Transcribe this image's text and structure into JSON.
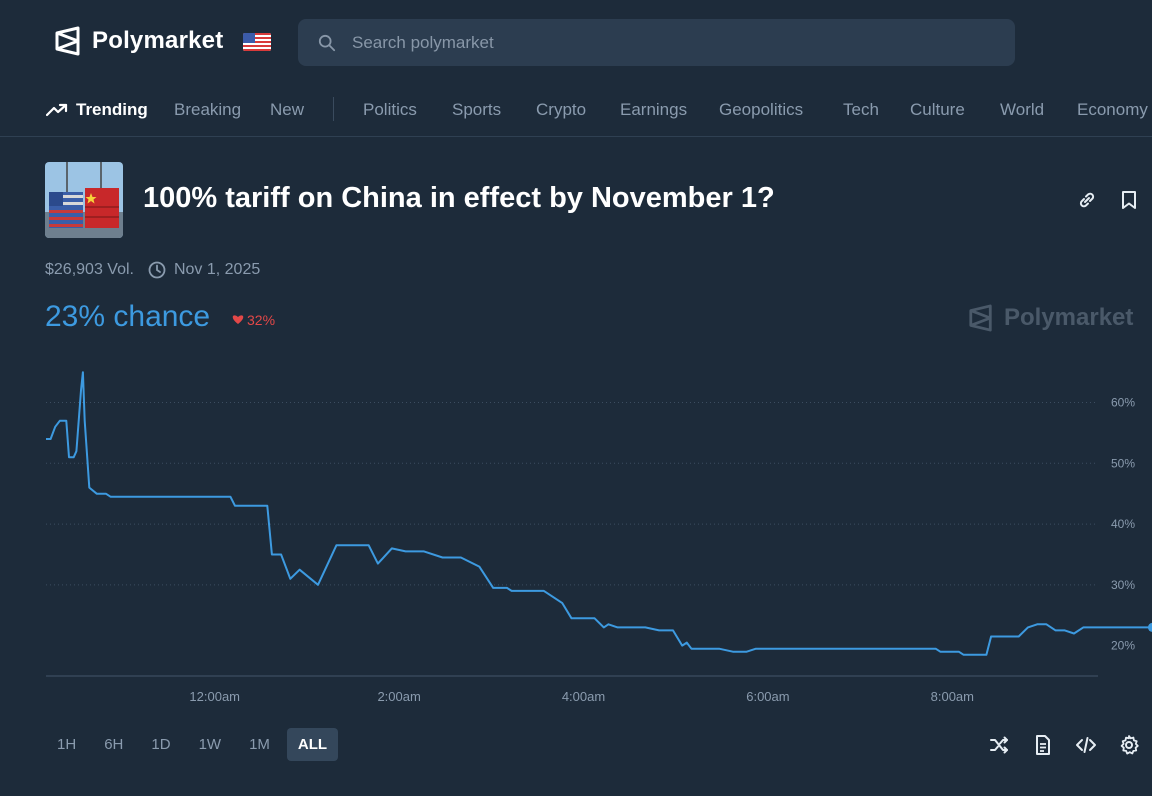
{
  "header": {
    "brand": "Polymarket",
    "search_placeholder": "Search polymarket"
  },
  "nav": {
    "items": [
      {
        "label": "Trending",
        "active": true
      },
      {
        "label": "Breaking"
      },
      {
        "label": "New"
      },
      {
        "label": "Politics"
      },
      {
        "label": "Sports"
      },
      {
        "label": "Crypto"
      },
      {
        "label": "Earnings"
      },
      {
        "label": "Geopolitics"
      },
      {
        "label": "Tech"
      },
      {
        "label": "Culture"
      },
      {
        "label": "World"
      },
      {
        "label": "Economy"
      }
    ]
  },
  "market": {
    "title": "100% tariff on China in effect by November 1?",
    "volume": "$26,903 Vol.",
    "end_date": "Nov 1, 2025",
    "chance": "23% chance",
    "change": "32%",
    "watermark": "Polymarket"
  },
  "chart_data": {
    "type": "line",
    "series": [
      {
        "color": "#3d9ae0",
        "points": [
          [
            0,
            54
          ],
          [
            0.05,
            54
          ],
          [
            0.1,
            56
          ],
          [
            0.15,
            57
          ],
          [
            0.22,
            57
          ],
          [
            0.25,
            51
          ],
          [
            0.3,
            51
          ],
          [
            0.33,
            52
          ],
          [
            0.38,
            62
          ],
          [
            0.4,
            65
          ],
          [
            0.42,
            57
          ],
          [
            0.47,
            46
          ],
          [
            0.55,
            45
          ],
          [
            0.65,
            45
          ],
          [
            0.7,
            44.5
          ],
          [
            1.0,
            44.5
          ],
          [
            1.5,
            44.5
          ],
          [
            2.0,
            44.5
          ],
          [
            2.05,
            43
          ],
          [
            2.4,
            43
          ],
          [
            2.45,
            35
          ],
          [
            2.55,
            35
          ],
          [
            2.65,
            31
          ],
          [
            2.75,
            32.5
          ],
          [
            2.95,
            30
          ],
          [
            3.15,
            36.5
          ],
          [
            3.5,
            36.5
          ],
          [
            3.6,
            33.5
          ],
          [
            3.75,
            36
          ],
          [
            3.9,
            35.5
          ],
          [
            4.1,
            35.5
          ],
          [
            4.3,
            34.5
          ],
          [
            4.5,
            34.5
          ],
          [
            4.7,
            33
          ],
          [
            4.85,
            29.5
          ],
          [
            5.0,
            29.5
          ],
          [
            5.05,
            29
          ],
          [
            5.4,
            29
          ],
          [
            5.6,
            27
          ],
          [
            5.7,
            24.5
          ],
          [
            5.95,
            24.5
          ],
          [
            6.05,
            23
          ],
          [
            6.1,
            23.5
          ],
          [
            6.2,
            23
          ],
          [
            6.5,
            23
          ],
          [
            6.65,
            22.5
          ],
          [
            6.8,
            22.5
          ],
          [
            6.9,
            20
          ],
          [
            6.95,
            20.5
          ],
          [
            7.0,
            19.5
          ],
          [
            7.3,
            19.5
          ],
          [
            7.45,
            19
          ],
          [
            7.6,
            19
          ],
          [
            7.7,
            19.5
          ],
          [
            8.0,
            19.5
          ],
          [
            8.5,
            19.5
          ],
          [
            9.0,
            19.5
          ],
          [
            9.65,
            19.5
          ],
          [
            9.7,
            19
          ],
          [
            9.9,
            19
          ],
          [
            9.95,
            18.5
          ],
          [
            10.2,
            18.5
          ],
          [
            10.25,
            21.5
          ],
          [
            10.55,
            21.5
          ],
          [
            10.65,
            23
          ],
          [
            10.75,
            23.5
          ],
          [
            10.85,
            23.5
          ],
          [
            10.95,
            22.5
          ],
          [
            11.05,
            22.5
          ],
          [
            11.15,
            22
          ],
          [
            11.25,
            23
          ],
          [
            11.4,
            23
          ],
          [
            11.8,
            23
          ],
          [
            12.0,
            23
          ]
        ]
      }
    ],
    "x_ticks": [
      "12:00am",
      "2:00am",
      "4:00am",
      "6:00am",
      "8:00am"
    ],
    "y_ticks": [
      "20%",
      "30%",
      "40%",
      "50%",
      "60%"
    ],
    "ylim": [
      15,
      67
    ],
    "grid": true
  },
  "time_ranges": [
    {
      "label": "1H"
    },
    {
      "label": "6H"
    },
    {
      "label": "1D"
    },
    {
      "label": "1W"
    },
    {
      "label": "1M"
    },
    {
      "label": "ALL",
      "active": true
    }
  ]
}
